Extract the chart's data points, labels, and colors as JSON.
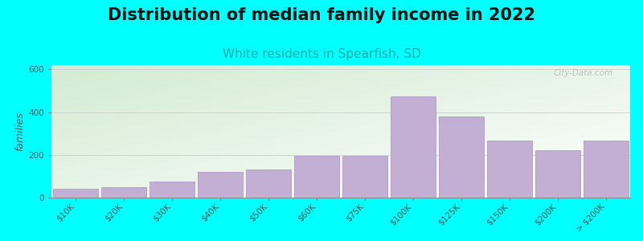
{
  "title": "Distribution of median family income in 2022",
  "subtitle": "White residents in Spearfish, SD",
  "ylabel": "families",
  "categories": [
    "$10K",
    "$20K",
    "$30K",
    "$40K",
    "$50K",
    "$60K",
    "$75K",
    "$100K",
    "$125K",
    "$150K",
    "$200K",
    "> $200K"
  ],
  "values": [
    40,
    50,
    75,
    120,
    130,
    195,
    195,
    475,
    380,
    265,
    220,
    265
  ],
  "bar_color": "#c4afd4",
  "bar_edge_color": "#b8a0cc",
  "background_color": "#00ffff",
  "title_fontsize": 15,
  "subtitle_fontsize": 11,
  "subtitle_color": "#22aaaa",
  "ylabel_fontsize": 9,
  "tick_fontsize": 7.5,
  "ylim": [
    0,
    620
  ],
  "yticks": [
    0,
    200,
    400,
    600
  ],
  "watermark": "City-Data.com"
}
